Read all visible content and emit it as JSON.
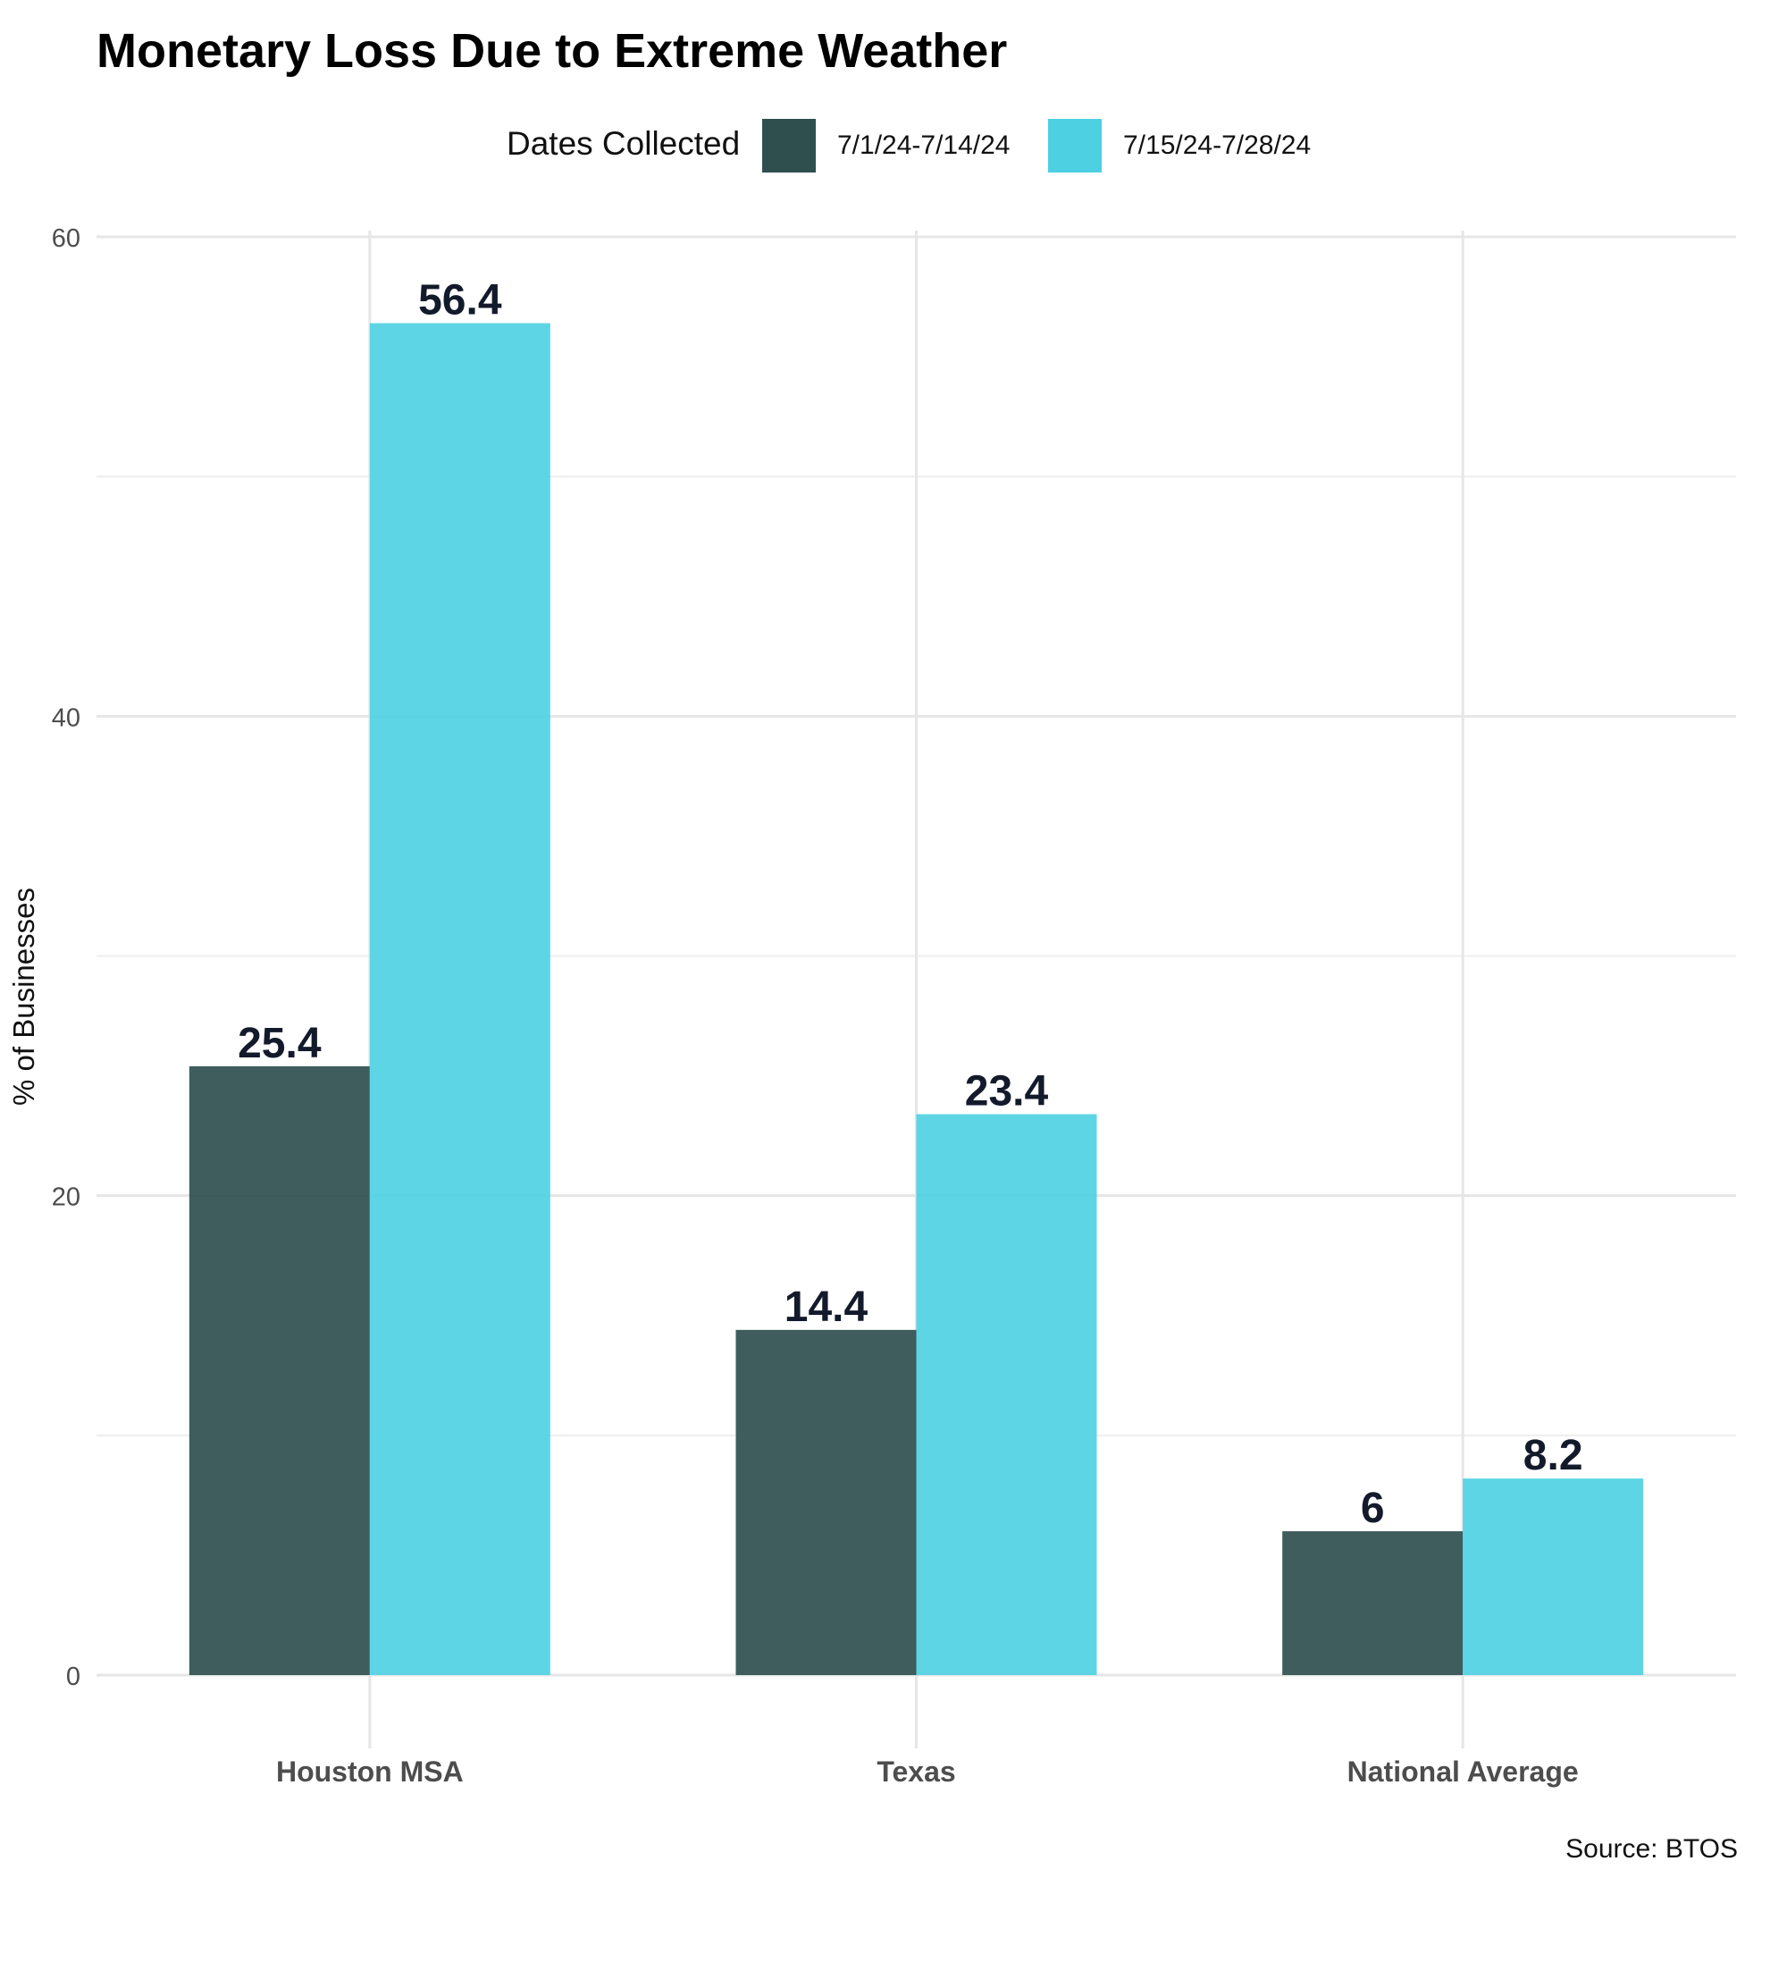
{
  "chart_data": {
    "type": "bar",
    "title": "Monetary Loss Due to Extreme Weather",
    "xlabel": "",
    "ylabel": "% of Businesses",
    "categories": [
      "Houston MSA",
      "Texas",
      "National Average"
    ],
    "series": [
      {
        "name": "7/1/24-7/14/24",
        "values": [
          25.4,
          14.4,
          6
        ],
        "color": "#2f4f4f"
      },
      {
        "name": "7/15/24-7/28/24",
        "values": [
          56.4,
          23.4,
          8.2
        ],
        "color": "#4dd0e1"
      }
    ],
    "data_labels": {
      "houston_msa": [
        "25.4",
        "56.4"
      ],
      "texas": [
        "14.4",
        "23.4"
      ],
      "national_average": [
        "6",
        "8.2"
      ]
    },
    "ylim": [
      0,
      60
    ],
    "yticks": [
      "0",
      "20",
      "40",
      "60"
    ],
    "grid": true,
    "legend": {
      "title": "Dates Collected",
      "position": "top"
    },
    "caption": "Source: BTOS"
  }
}
